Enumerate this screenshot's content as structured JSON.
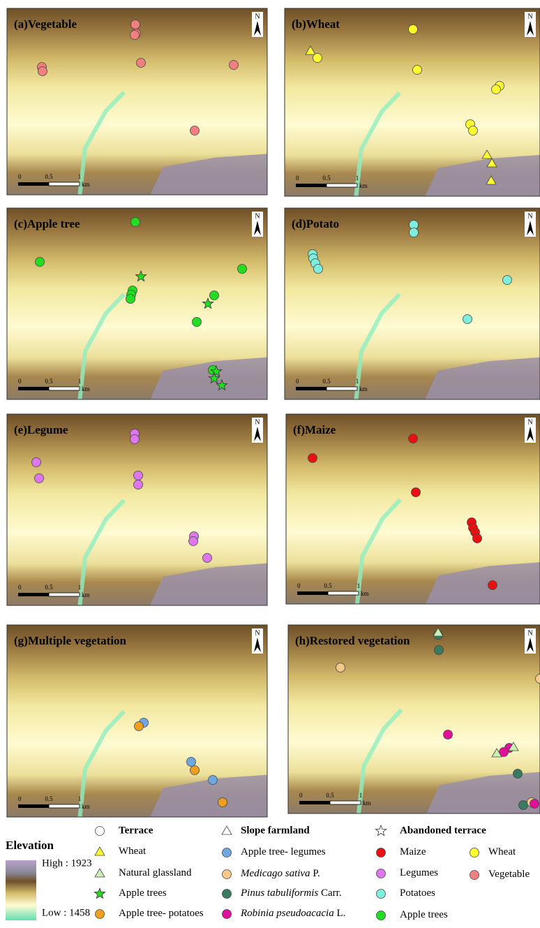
{
  "panels": [
    {
      "title": "(a)Vegetable"
    },
    {
      "title": "(b)Wheat"
    },
    {
      "title": "(c)Apple tree"
    },
    {
      "title": "(d)Potato"
    },
    {
      "title": "(e)Legume"
    },
    {
      "title": "(f)Maize"
    },
    {
      "title": "(g)Multiple vegetation"
    },
    {
      "title": "(h)Restored vegetation"
    }
  ],
  "scale_bar": {
    "labels": [
      "0",
      "0.5",
      "1"
    ],
    "unit": "km"
  },
  "north": "N",
  "legend": {
    "title": "Elevation",
    "high": "High : 1923",
    "low": "Low : 1458",
    "headers": [
      "Terrace",
      "Slope farmland",
      "Abandoned terrace"
    ],
    "items": [
      {
        "label": "Wheat"
      },
      {
        "label": "Natural glassland"
      },
      {
        "label": "Apple trees"
      },
      {
        "label": "Apple tree- potatoes"
      },
      {
        "label": "Apple tree- legumes"
      },
      {
        "italic": "Medicago sativa",
        "label": "P."
      },
      {
        "italic": "Pinus tabuliformis",
        "label": "Carr."
      },
      {
        "italic": "Robinia pseudoacacia",
        "label": "L."
      },
      {
        "label": "Maize"
      },
      {
        "label": "Legumes"
      },
      {
        "label": "Potatoes"
      },
      {
        "label": "Apple trees"
      },
      {
        "label": "Wheat"
      },
      {
        "label": "Vegetable"
      }
    ]
  }
}
